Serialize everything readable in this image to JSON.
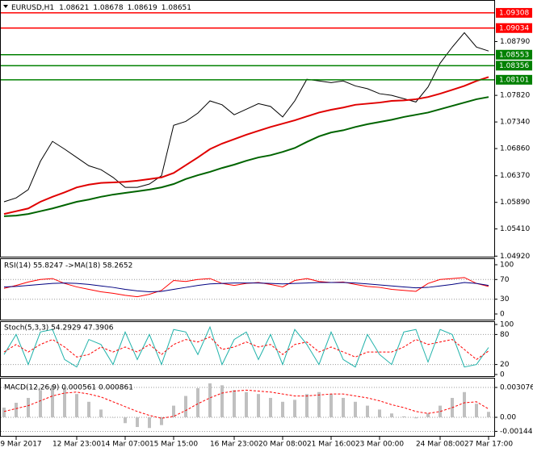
{
  "chart_data": [
    {
      "type": "line",
      "title": "EURUSD,H1",
      "ohlc": [
        1.08621,
        1.08678,
        1.08619,
        1.08651
      ],
      "categories": [
        null,
        "9 Mar 2017",
        null,
        null,
        null,
        null,
        "12 Mar 23:00",
        null,
        null,
        null,
        "14 Mar 07:00",
        null,
        null,
        null,
        "15 Mar 15:00",
        null,
        null,
        null,
        null,
        "16 Mar 23:00",
        null,
        null,
        null,
        "20 Mar 08:00",
        null,
        null,
        null,
        "21 Mar 16:00",
        null,
        null,
        null,
        "23 Mar 00:00",
        null,
        null,
        null,
        null,
        "24 Mar 08:00",
        null,
        null,
        null,
        "27 Mar 17:00"
      ],
      "series": [
        {
          "color": "#000000",
          "values": [
            1.059,
            1.0597,
            1.0612,
            1.0663,
            1.0699,
            1.0685,
            1.067,
            1.0655,
            1.0648,
            1.0634,
            1.0616,
            1.0616,
            1.0622,
            1.0637,
            1.0728,
            1.0735,
            1.075,
            1.0772,
            1.0765,
            1.0747,
            1.0757,
            1.0767,
            1.0762,
            1.0743,
            1.0772,
            1.0811,
            1.0808,
            1.0805,
            1.0808,
            1.0799,
            1.0794,
            1.0785,
            1.0782,
            1.0776,
            1.077,
            1.0797,
            1.084,
            1.0869,
            1.0895,
            1.0869,
            1.0862
          ]
        },
        {
          "color": "#e00000",
          "values": [
            1.0568,
            1.0573,
            1.0578,
            1.059,
            1.0599,
            1.0607,
            1.0616,
            1.0621,
            1.0624,
            1.0625,
            1.0626,
            1.0628,
            1.0631,
            1.0634,
            1.0642,
            1.0656,
            1.067,
            1.0685,
            1.0695,
            1.0703,
            1.0711,
            1.0718,
            1.0725,
            1.0731,
            1.0737,
            1.0744,
            1.0751,
            1.0756,
            1.076,
            1.0765,
            1.0767,
            1.0769,
            1.0772,
            1.0773,
            1.0775,
            1.0779,
            1.0785,
            1.0792,
            1.0799,
            1.0808,
            1.0815
          ]
        },
        {
          "color": "#006400",
          "values": [
            1.0564,
            1.0565,
            1.0568,
            1.0573,
            1.0578,
            1.0584,
            1.059,
            1.0594,
            1.0599,
            1.0603,
            1.0606,
            1.0609,
            1.0612,
            1.0616,
            1.0622,
            1.0631,
            1.0638,
            1.0644,
            1.0651,
            1.0657,
            1.0664,
            1.067,
            1.0674,
            1.068,
            1.0687,
            1.0698,
            1.0708,
            1.0715,
            1.0719,
            1.0725,
            1.073,
            1.0734,
            1.0738,
            1.0743,
            1.0747,
            1.0751,
            1.0757,
            1.0763,
            1.0769,
            1.0775,
            1.0779
          ]
        }
      ],
      "levels": [
        {
          "value": 1.09308,
          "color": "#ff0000"
        },
        {
          "value": 1.09034,
          "color": "#ff0000"
        },
        {
          "value": 1.08553,
          "color": "#008000"
        },
        {
          "value": 1.08356,
          "color": "#008000"
        },
        {
          "value": 1.08101,
          "color": "#008000"
        }
      ],
      "ylim": [
        1.0491,
        1.0954
      ],
      "yticks": [
        {
          "value": 1.0879,
          "label": "1.08790"
        },
        {
          "value": 1.0782,
          "label": "1.07820"
        },
        {
          "value": 1.0734,
          "label": "1.07340"
        },
        {
          "value": 1.0686,
          "label": "1.06860"
        },
        {
          "value": 1.0637,
          "label": "1.06370"
        },
        {
          "value": 1.0589,
          "label": "1.05890"
        },
        {
          "value": 1.0541,
          "label": "1.05410"
        },
        {
          "value": 1.0492,
          "label": "1.04920"
        }
      ]
    },
    {
      "type": "line",
      "title": "RSI(14) 55.8247  ->MA(18) 58.2652",
      "series": [
        {
          "color": "#ff0000",
          "values": [
            52,
            58,
            65,
            70,
            72,
            62,
            55,
            50,
            45,
            42,
            38,
            35,
            40,
            48,
            68,
            66,
            70,
            72,
            62,
            58,
            62,
            64,
            60,
            55,
            68,
            72,
            66,
            64,
            65,
            60,
            56,
            54,
            50,
            48,
            46,
            62,
            70,
            72,
            74,
            62,
            56
          ]
        },
        {
          "color": "#000080",
          "values": [
            55,
            56,
            58,
            60,
            62,
            63,
            62,
            60,
            57,
            54,
            50,
            47,
            45,
            46,
            50,
            54,
            58,
            61,
            62,
            63,
            63,
            63,
            62,
            61,
            62,
            63,
            64,
            64,
            64,
            63,
            61,
            59,
            57,
            55,
            53,
            54,
            57,
            60,
            64,
            62,
            58
          ]
        }
      ],
      "ylim": [
        0,
        100
      ],
      "yticks": [
        100,
        70,
        30,
        0
      ]
    },
    {
      "type": "line",
      "title": "Stoch(5,3,3) 54.2929 47.3906",
      "series": [
        {
          "color": "#20b2aa",
          "values": [
            40,
            80,
            20,
            85,
            90,
            30,
            15,
            70,
            60,
            20,
            85,
            30,
            80,
            20,
            90,
            85,
            40,
            95,
            20,
            70,
            85,
            30,
            80,
            20,
            90,
            60,
            20,
            85,
            30,
            15,
            80,
            40,
            20,
            85,
            90,
            25,
            90,
            80,
            15,
            20,
            54
          ]
        },
        {
          "color": "#ff0000",
          "dashed": true,
          "values": [
            45,
            60,
            45,
            60,
            70,
            55,
            35,
            40,
            55,
            45,
            55,
            45,
            60,
            40,
            60,
            70,
            65,
            75,
            50,
            55,
            65,
            55,
            60,
            40,
            60,
            65,
            45,
            55,
            45,
            35,
            45,
            45,
            45,
            55,
            70,
            60,
            65,
            70,
            50,
            30,
            47
          ]
        }
      ],
      "ylim": [
        0,
        100
      ],
      "yticks": [
        100,
        80,
        20,
        0
      ]
    },
    {
      "type": "bar",
      "title": "MACD(12,26,9) 0.000561 0.000861",
      "series": [
        {
          "type": "bar",
          "color": "#c0c0c0",
          "values": [
            0.001,
            0.0015,
            0.002,
            0.0028,
            0.0033,
            0.003,
            0.0024,
            0.0016,
            0.0008,
            0.0,
            -0.0006,
            -0.001,
            -0.0011,
            -0.0008,
            0.0012,
            0.0022,
            0.003,
            0.0035,
            0.0033,
            0.0028,
            0.0026,
            0.0024,
            0.002,
            0.0016,
            0.0018,
            0.0024,
            0.0026,
            0.0024,
            0.002,
            0.0016,
            0.0012,
            0.0008,
            0.0004,
            0.0001,
            -0.0001,
            0.0004,
            0.0012,
            0.002,
            0.0026,
            0.0014,
            0.000561
          ]
        },
        {
          "type": "line",
          "color": "#ff0000",
          "dashed": true,
          "values": [
            0.0006,
            0.0009,
            0.0012,
            0.0017,
            0.0022,
            0.0025,
            0.0026,
            0.0024,
            0.0021,
            0.0016,
            0.0011,
            0.0006,
            0.0002,
            -0.0001,
            0.0001,
            0.0007,
            0.0014,
            0.002,
            0.0025,
            0.0027,
            0.0028,
            0.0027,
            0.0026,
            0.0024,
            0.0022,
            0.0022,
            0.0023,
            0.0024,
            0.0024,
            0.0022,
            0.002,
            0.0017,
            0.0013,
            0.001,
            0.0006,
            0.0004,
            0.0006,
            0.001,
            0.0015,
            0.0016,
            0.000861
          ]
        }
      ],
      "ylim": [
        -0.00191,
        0.00391
      ],
      "yticks": [
        0.003076,
        {
          "value": 0,
          "label": "0.00"
        },
        -0.001448
      ]
    }
  ]
}
